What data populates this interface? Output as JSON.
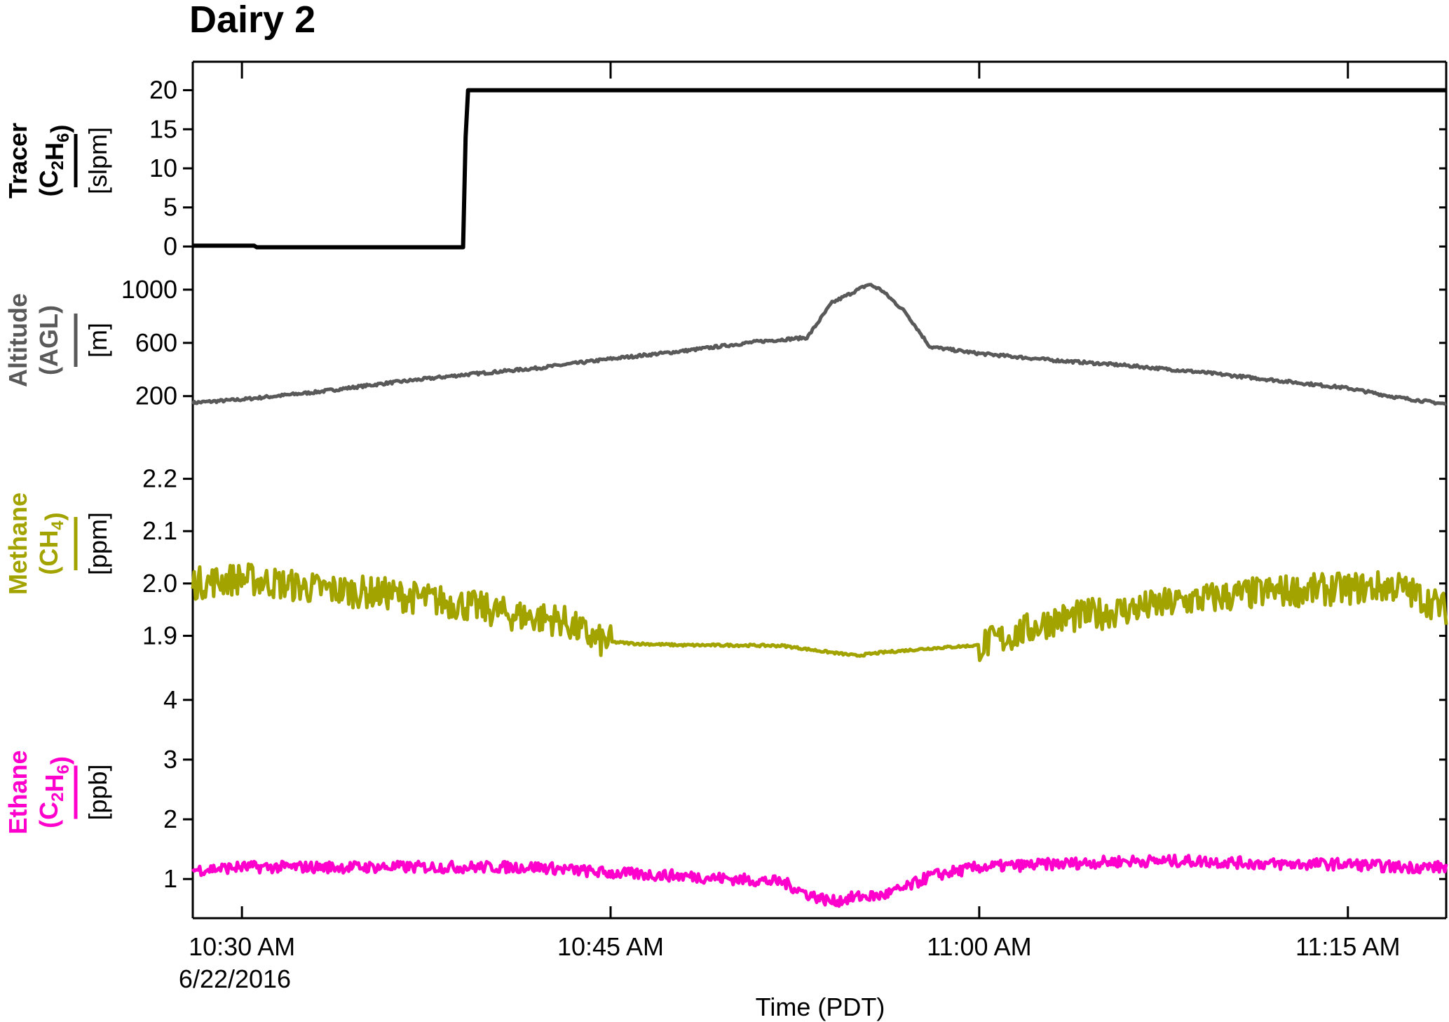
{
  "chart_data": {
    "type": "line",
    "title": "Dairy 2",
    "xlabel": "Time (PDT)",
    "x_tick_labels": [
      "10:30 AM",
      "10:45 AM",
      "11:00 AM",
      "11:15 AM"
    ],
    "x_tick_values": [
      "10:30",
      "10:45",
      "11:00",
      "11:15"
    ],
    "x_date_label": "6/22/2016",
    "x_range": [
      "10:28",
      "11:19"
    ],
    "grid": false,
    "legend": "none",
    "panels": [
      {
        "id": "tracer",
        "name": "Tracer",
        "species_main": "(C",
        "species_sub1": "2",
        "species_mid": "H",
        "species_sub2": "6",
        "species_end": ")",
        "unit": "[slpm]",
        "color": "#000000",
        "yticks": [
          0,
          5,
          10,
          15,
          20
        ],
        "ylim": [
          -0.5,
          20.5
        ],
        "x": [
          "10:28",
          "10:30.5",
          "10:30.6",
          "10:39",
          "10:39.1",
          "10:39.2",
          "11:19"
        ],
        "values": [
          0.1,
          0.1,
          -0.1,
          -0.1,
          14,
          20,
          20
        ]
      },
      {
        "id": "altitude",
        "name": "Altitude",
        "species_main": "(AGL)",
        "unit": "[m]",
        "color": "#595959",
        "yticks": [
          200,
          600,
          1000
        ],
        "ylim": [
          130,
          1200
        ],
        "x": [
          "10:28",
          "10:30",
          "10:33",
          "10:36",
          "10:39",
          "10:42",
          "10:45",
          "10:48",
          "10:51",
          "10:53",
          "10:54",
          "10:55.5",
          "10:56",
          "10:57",
          "10:58",
          "11:00",
          "11:03",
          "11:06",
          "11:09",
          "11:12",
          "11:15",
          "11:17",
          "11:19"
        ],
        "values": [
          150,
          175,
          230,
          300,
          360,
          410,
          480,
          540,
          610,
          640,
          900,
          1040,
          1000,
          830,
          570,
          520,
          470,
          430,
          380,
          320,
          260,
          190,
          140
        ]
      },
      {
        "id": "methane",
        "name": "Methane",
        "species_main": "(CH",
        "species_sub1": "4",
        "species_end": ")",
        "unit": "[ppm]",
        "color": "#a3a300",
        "yticks": [
          1.9,
          2.0,
          2.1,
          2.2
        ],
        "ylim": [
          1.855,
          2.3
        ],
        "x": [
          "10:28",
          "10:30",
          "10:33",
          "10:36",
          "10:39",
          "10:41",
          "10:43",
          "10:44.5",
          "10:46",
          "10:48",
          "10:50",
          "10:52",
          "10:54",
          "10:55",
          "10:56",
          "10:58",
          "11:00",
          "11:01",
          "11:03",
          "11:06",
          "11:09",
          "11:12",
          "11:15",
          "11:17",
          "11:19"
        ],
        "values": [
          2.0,
          2.01,
          1.99,
          1.98,
          1.96,
          1.94,
          1.93,
          1.89,
          1.885,
          1.882,
          1.882,
          1.881,
          1.868,
          1.862,
          1.868,
          1.876,
          1.882,
          1.895,
          1.93,
          1.95,
          1.97,
          1.985,
          1.99,
          1.995,
          1.95
        ]
      },
      {
        "id": "ethane",
        "name": "Ethane",
        "species_main": "(C",
        "species_sub1": "2",
        "species_mid": "H",
        "species_sub2": "6",
        "species_end": ")",
        "unit": "[ppb]",
        "color": "#ff00cc",
        "yticks": [
          1,
          2,
          3,
          4
        ],
        "ylim": [
          0.45,
          4.35
        ],
        "x": [
          "10:28",
          "10:30",
          "10:34",
          "10:38",
          "10:42",
          "10:45",
          "10:48",
          "10:50",
          "10:52",
          "10:53",
          "10:54",
          "10:55",
          "10:56",
          "10:57",
          "10:58",
          "11:00",
          "11:03",
          "11:06",
          "11:09",
          "11:12",
          "11:15",
          "11:17",
          "11:19"
        ],
        "values": [
          1.15,
          1.2,
          1.2,
          1.2,
          1.2,
          1.1,
          1.05,
          1.0,
          0.95,
          0.75,
          0.62,
          0.7,
          0.72,
          0.85,
          1.05,
          1.2,
          1.25,
          1.3,
          1.3,
          1.25,
          1.25,
          1.2,
          1.2
        ]
      }
    ]
  }
}
